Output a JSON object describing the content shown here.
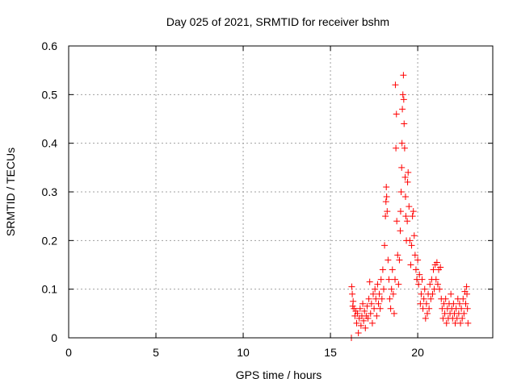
{
  "chart_data": {
    "type": "scatter",
    "title": "Day 025 of 2021, SRMTID for receiver bshm",
    "xlabel": "GPS time / hours",
    "ylabel": "SRMTID / TECUs",
    "xlim": [
      0,
      24.3
    ],
    "ylim": [
      0,
      0.6
    ],
    "xticks": [
      0,
      5,
      10,
      15,
      20
    ],
    "yticks": [
      0,
      0.1,
      0.2,
      0.3,
      0.4,
      0.5,
      0.6
    ],
    "xtick_labels": [
      "0",
      "5",
      "10",
      "15",
      "20"
    ],
    "ytick_labels": [
      "0",
      "0.1",
      "0.2",
      "0.3",
      "0.4",
      "0.5",
      "0.6"
    ],
    "grid": true,
    "marker": "+",
    "colors": {
      "series": "#ff0000",
      "grid": "#a0a0a0",
      "axes": "#000000"
    },
    "series": [
      {
        "name": "SRMTID",
        "points": [
          [
            16.2,
            0.0
          ],
          [
            16.22,
            0.105
          ],
          [
            16.25,
            0.09
          ],
          [
            16.28,
            0.065
          ],
          [
            16.3,
            0.075
          ],
          [
            16.35,
            0.06
          ],
          [
            16.4,
            0.045
          ],
          [
            16.45,
            0.055
          ],
          [
            16.5,
            0.03
          ],
          [
            16.55,
            0.05
          ],
          [
            16.6,
            0.01
          ],
          [
            16.65,
            0.04
          ],
          [
            16.7,
            0.06
          ],
          [
            16.75,
            0.025
          ],
          [
            16.8,
            0.045
          ],
          [
            16.85,
            0.07
          ],
          [
            16.9,
            0.035
          ],
          [
            16.95,
            0.055
          ],
          [
            17.0,
            0.02
          ],
          [
            17.05,
            0.045
          ],
          [
            17.1,
            0.065
          ],
          [
            17.15,
            0.04
          ],
          [
            17.2,
            0.08
          ],
          [
            17.25,
            0.115
          ],
          [
            17.3,
            0.05
          ],
          [
            17.35,
            0.07
          ],
          [
            17.4,
            0.03
          ],
          [
            17.45,
            0.09
          ],
          [
            17.5,
            0.06
          ],
          [
            17.55,
            0.1
          ],
          [
            17.6,
            0.08
          ],
          [
            17.65,
            0.045
          ],
          [
            17.7,
            0.11
          ],
          [
            17.75,
            0.07
          ],
          [
            17.8,
            0.09
          ],
          [
            17.85,
            0.06
          ],
          [
            17.9,
            0.12
          ],
          [
            17.95,
            0.08
          ],
          [
            18.0,
            0.14
          ],
          [
            18.05,
            0.1
          ],
          [
            18.1,
            0.19
          ],
          [
            18.15,
            0.25
          ],
          [
            18.18,
            0.28
          ],
          [
            18.2,
            0.31
          ],
          [
            18.22,
            0.29
          ],
          [
            18.25,
            0.26
          ],
          [
            18.3,
            0.16
          ],
          [
            18.35,
            0.12
          ],
          [
            18.4,
            0.08
          ],
          [
            18.45,
            0.06
          ],
          [
            18.5,
            0.1
          ],
          [
            18.55,
            0.14
          ],
          [
            18.6,
            0.09
          ],
          [
            18.65,
            0.05
          ],
          [
            18.7,
            0.12
          ],
          [
            18.72,
            0.52
          ],
          [
            18.75,
            0.39
          ],
          [
            18.78,
            0.46
          ],
          [
            18.8,
            0.24
          ],
          [
            18.85,
            0.17
          ],
          [
            18.9,
            0.11
          ],
          [
            18.95,
            0.16
          ],
          [
            19.0,
            0.22
          ],
          [
            19.02,
            0.26
          ],
          [
            19.05,
            0.3
          ],
          [
            19.08,
            0.35
          ],
          [
            19.1,
            0.4
          ],
          [
            19.12,
            0.47
          ],
          [
            19.15,
            0.5
          ],
          [
            19.18,
            0.54
          ],
          [
            19.2,
            0.49
          ],
          [
            19.22,
            0.44
          ],
          [
            19.25,
            0.39
          ],
          [
            19.28,
            0.33
          ],
          [
            19.3,
            0.29
          ],
          [
            19.32,
            0.25
          ],
          [
            19.35,
            0.2
          ],
          [
            19.4,
            0.24
          ],
          [
            19.42,
            0.32
          ],
          [
            19.45,
            0.34
          ],
          [
            19.5,
            0.27
          ],
          [
            19.55,
            0.2
          ],
          [
            19.6,
            0.15
          ],
          [
            19.65,
            0.19
          ],
          [
            19.7,
            0.25
          ],
          [
            19.75,
            0.26
          ],
          [
            19.8,
            0.21
          ],
          [
            19.85,
            0.17
          ],
          [
            19.9,
            0.14
          ],
          [
            19.95,
            0.12
          ],
          [
            20.0,
            0.16
          ],
          [
            20.05,
            0.11
          ],
          [
            20.1,
            0.13
          ],
          [
            20.15,
            0.07
          ],
          [
            20.2,
            0.09
          ],
          [
            20.25,
            0.12
          ],
          [
            20.3,
            0.06
          ],
          [
            20.35,
            0.08
          ],
          [
            20.4,
            0.1
          ],
          [
            20.45,
            0.04
          ],
          [
            20.5,
            0.07
          ],
          [
            20.55,
            0.05
          ],
          [
            20.6,
            0.09
          ],
          [
            20.65,
            0.06
          ],
          [
            20.7,
            0.11
          ],
          [
            20.75,
            0.08
          ],
          [
            20.8,
            0.12
          ],
          [
            20.85,
            0.09
          ],
          [
            20.9,
            0.14
          ],
          [
            20.95,
            0.1
          ],
          [
            21.0,
            0.15
          ],
          [
            21.05,
            0.12
          ],
          [
            21.1,
            0.155
          ],
          [
            21.15,
            0.11
          ],
          [
            21.2,
            0.14
          ],
          [
            21.25,
            0.1
          ],
          [
            21.3,
            0.145
          ],
          [
            21.35,
            0.08
          ],
          [
            21.4,
            0.06
          ],
          [
            21.45,
            0.04
          ],
          [
            21.5,
            0.07
          ],
          [
            21.55,
            0.05
          ],
          [
            21.6,
            0.08
          ],
          [
            21.65,
            0.03
          ],
          [
            21.7,
            0.06
          ],
          [
            21.75,
            0.04
          ],
          [
            21.8,
            0.07
          ],
          [
            21.85,
            0.05
          ],
          [
            21.9,
            0.09
          ],
          [
            21.95,
            0.06
          ],
          [
            22.0,
            0.04
          ],
          [
            22.05,
            0.07
          ],
          [
            22.1,
            0.05
          ],
          [
            22.15,
            0.03
          ],
          [
            22.2,
            0.06
          ],
          [
            22.25,
            0.04
          ],
          [
            22.3,
            0.08
          ],
          [
            22.35,
            0.05
          ],
          [
            22.4,
            0.07
          ],
          [
            22.45,
            0.03
          ],
          [
            22.5,
            0.06
          ],
          [
            22.55,
            0.04
          ],
          [
            22.6,
            0.08
          ],
          [
            22.65,
            0.05
          ],
          [
            22.7,
            0.095
          ],
          [
            22.75,
            0.07
          ],
          [
            22.8,
            0.105
          ],
          [
            22.82,
            0.09
          ],
          [
            22.85,
            0.06
          ],
          [
            22.88,
            0.03
          ]
        ]
      }
    ]
  }
}
